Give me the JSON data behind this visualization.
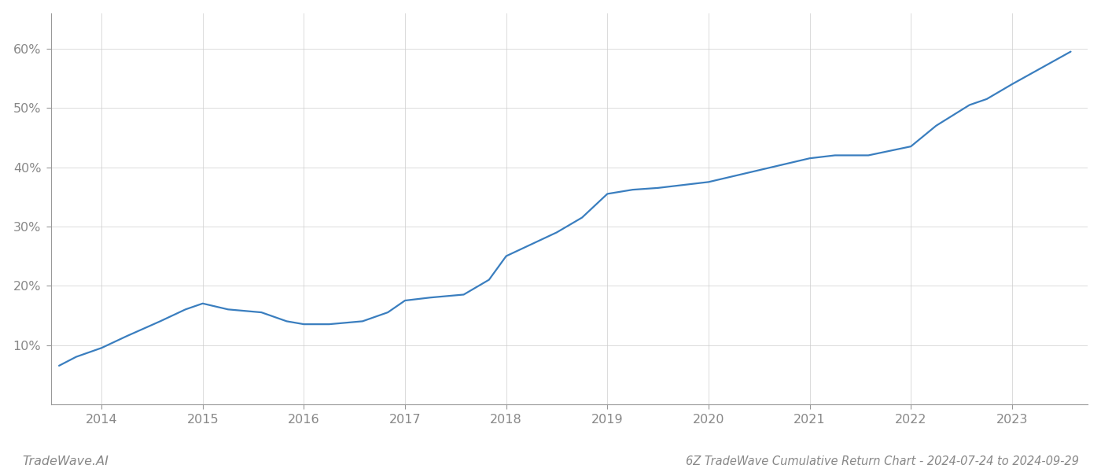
{
  "title": "6Z TradeWave Cumulative Return Chart - 2024-07-24 to 2024-09-29",
  "watermark": "TradeWave.AI",
  "line_color": "#3a7ebf",
  "background_color": "#ffffff",
  "grid_color": "#cccccc",
  "x_values": [
    2013.58,
    2013.75,
    2014.0,
    2014.25,
    2014.58,
    2014.83,
    2015.0,
    2015.25,
    2015.58,
    2015.83,
    2016.0,
    2016.25,
    2016.58,
    2016.83,
    2017.0,
    2017.25,
    2017.58,
    2017.83,
    2018.0,
    2018.25,
    2018.5,
    2018.75,
    2019.0,
    2019.25,
    2019.5,
    2019.75,
    2020.0,
    2020.25,
    2020.5,
    2020.75,
    2021.0,
    2021.25,
    2021.58,
    2022.0,
    2022.25,
    2022.58,
    2022.75,
    2023.0,
    2023.58
  ],
  "y_values": [
    6.5,
    8.0,
    9.5,
    11.5,
    14.0,
    16.0,
    17.0,
    16.0,
    15.5,
    14.0,
    13.5,
    13.5,
    14.0,
    15.5,
    17.5,
    18.0,
    18.5,
    21.0,
    25.0,
    27.0,
    29.0,
    31.5,
    35.5,
    36.2,
    36.5,
    37.0,
    37.5,
    38.5,
    39.5,
    40.5,
    41.5,
    42.0,
    42.0,
    43.5,
    47.0,
    50.5,
    51.5,
    54.0,
    59.5
  ],
  "xlim": [
    2013.5,
    2023.75
  ],
  "ylim": [
    0,
    66
  ],
  "yticks": [
    10,
    20,
    30,
    40,
    50,
    60
  ],
  "xticks": [
    2014,
    2015,
    2016,
    2017,
    2018,
    2019,
    2020,
    2021,
    2022,
    2023
  ],
  "line_width": 1.6,
  "title_fontsize": 10.5,
  "tick_fontsize": 11.5,
  "watermark_fontsize": 11.5,
  "tick_color": "#888888",
  "spine_color": "#999999",
  "grid_alpha": 0.7,
  "grid_linewidth": 0.7
}
